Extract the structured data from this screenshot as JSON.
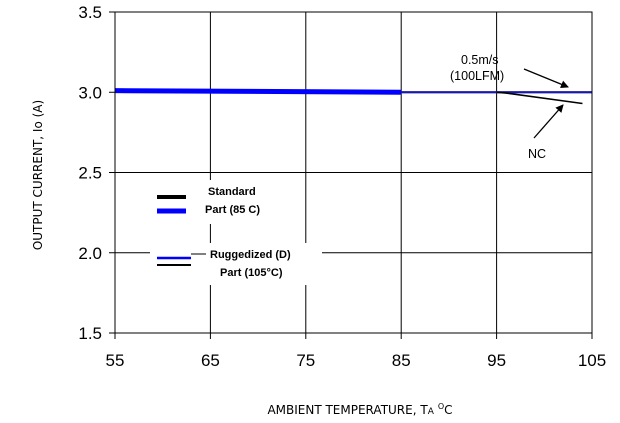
{
  "chart_data": {
    "type": "line",
    "xlabel_main": "AMBIENT TEMPERATURE, T",
    "xlabel_sub": "A",
    "xlabel_sup": "O",
    "xlabel_tail": "C",
    "ylabel": "OUTPUT CURRENT, Io  (A)",
    "xlim": [
      55,
      105
    ],
    "ylim": [
      1.5,
      3.5
    ],
    "x_ticks": [
      "55",
      "65",
      "75",
      "85",
      "95",
      "105"
    ],
    "y_ticks": [
      "1.5",
      "2.0",
      "2.5",
      "3.0",
      "3.5"
    ],
    "grid": true,
    "series": [
      {
        "color": "#0000ff",
        "width": 5,
        "x": [
          55,
          85
        ],
        "y": [
          3.01,
          3.0
        ]
      },
      {
        "color": "#1a1aa8",
        "width": 2.2,
        "x": [
          85,
          105
        ],
        "y": [
          3.0,
          3.0
        ]
      },
      {
        "color": "#000000",
        "width": 1.6,
        "x": [
          95,
          96,
          104
        ],
        "y": [
          3.0,
          2.995,
          2.93
        ]
      }
    ],
    "legend": [
      {
        "label_line1": "Standard",
        "label_line2": "Part (85 C)",
        "colors": [
          "#000000",
          "#0000ff"
        ]
      },
      {
        "label_line1": "Ruggedized (D)",
        "label_line2": "Part (105°C)",
        "colors": [
          "#0000ff",
          "#000000"
        ]
      }
    ],
    "annotations": [
      {
        "line1": "0.5m/s",
        "line2": "(100LFM)"
      },
      {
        "line1": "NC"
      }
    ]
  }
}
